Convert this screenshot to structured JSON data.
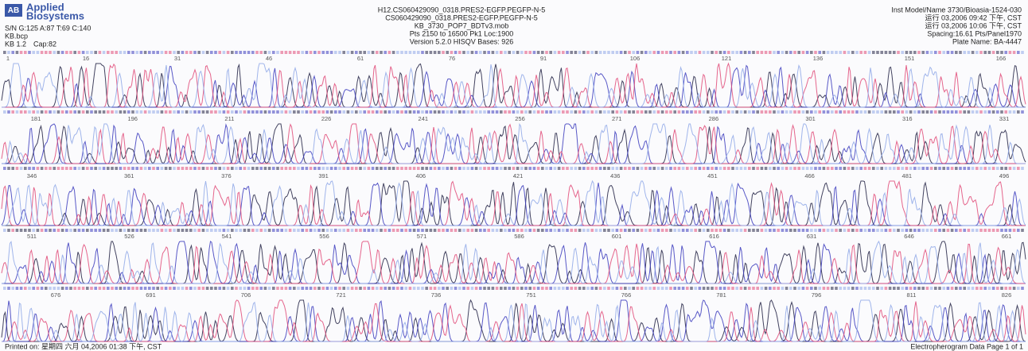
{
  "header": {
    "logo": [
      "Applied",
      "Biosystems"
    ],
    "left": [
      "S/N G:125 A:87 T:69 C:140",
      "KB.bcp",
      "KB 1.2",
      "Cap:82"
    ],
    "center": [
      "H12.CS060429090_0318.PRES2-EGFP.PEGFP-N-5",
      "CS060429090_0318.PRES2-EGFP.PEGFP-N-5",
      "KB_3730_POP7_BDTv3.mob",
      "Pts 2150 to 16500 Pk1 Loc:1900",
      "Version 5.2.0   HISQV Bases: 926"
    ],
    "right": [
      "Inst Model/Name 3730/Bioasia-1524-030",
      "运行 03,2006 09:42 下午, CST",
      "运行 03,2006 10:06 下午, CST",
      "Spacing:16.61 Pts/Panel1970",
      "Plate Name: BA-4447"
    ]
  },
  "rows": [
    {
      "ticks": [
        1,
        16,
        31,
        46,
        61,
        76,
        91,
        106,
        121,
        136,
        151,
        166
      ]
    },
    {
      "ticks": [
        181,
        196,
        211,
        226,
        241,
        256,
        271,
        286,
        301,
        316,
        331
      ]
    },
    {
      "ticks": [
        346,
        361,
        376,
        391,
        406,
        421,
        436,
        451,
        466,
        481,
        496
      ]
    },
    {
      "ticks": [
        511,
        526,
        541,
        556,
        571,
        586,
        601,
        616,
        631,
        646,
        661
      ]
    },
    {
      "ticks": [
        676,
        691,
        706,
        721,
        736,
        751,
        766,
        781,
        796,
        811,
        826
      ]
    }
  ],
  "footer": {
    "left": "Printed on: 星期四 六月 04,2006 01:38 下午, CST",
    "right": "Electropherogram Data   Page 1 of 1"
  }
}
